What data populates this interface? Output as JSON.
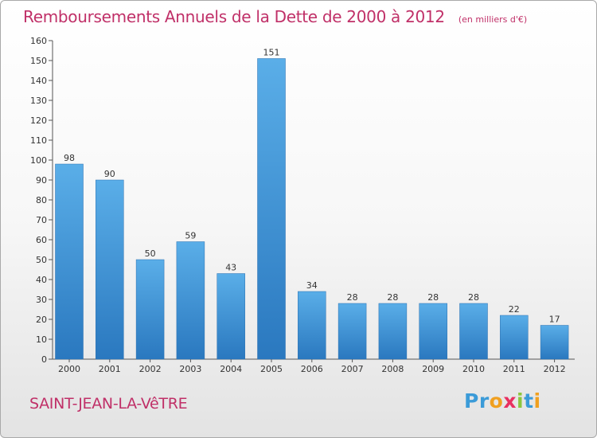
{
  "chart_data": {
    "type": "bar",
    "title": "Remboursements Annuels de la Dette de 2000 à 2012",
    "unit": "(en milliers d'€)",
    "categories": [
      "2000",
      "2001",
      "2002",
      "2003",
      "2004",
      "2005",
      "2006",
      "2007",
      "2008",
      "2009",
      "2010",
      "2011",
      "2012"
    ],
    "values": [
      98,
      90,
      50,
      59,
      43,
      151,
      34,
      28,
      28,
      28,
      28,
      22,
      17
    ],
    "ylim": [
      0,
      160
    ],
    "yticks": [
      0,
      10,
      20,
      30,
      40,
      50,
      60,
      70,
      80,
      90,
      100,
      110,
      120,
      130,
      140,
      150,
      160
    ],
    "grid": false,
    "bar_color": "#3d8fd6"
  },
  "footer": {
    "commune": "SAINT-JEAN-LA-VêTRE",
    "brand_letters": [
      "P",
      "r",
      "o",
      "x",
      "i",
      "t",
      "i"
    ],
    "brand_colors": [
      "#3b9bd8",
      "#3b9bd8",
      "#f0a020",
      "#e83060",
      "#8cc63e",
      "#3b9bd8",
      "#f0a020"
    ]
  }
}
